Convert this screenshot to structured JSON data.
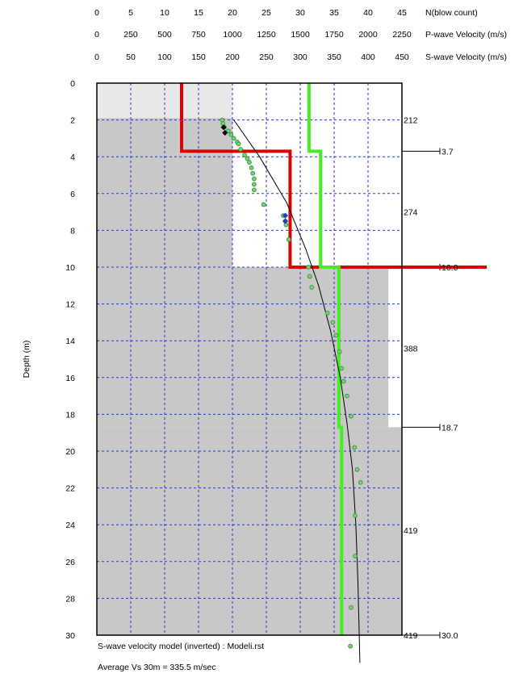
{
  "chart_data": {
    "type": "line",
    "ylabel": "Depth (m)",
    "ylim": [
      0,
      30
    ],
    "y_ticks": [
      0,
      2,
      4,
      6,
      8,
      10,
      12,
      14,
      16,
      18,
      20,
      22,
      24,
      26,
      28,
      30
    ],
    "axes_top": [
      {
        "label": "N(blow count)",
        "ticks": [
          0,
          5,
          10,
          15,
          20,
          25,
          30,
          35,
          40,
          45
        ],
        "range": [
          0,
          45
        ]
      },
      {
        "label": "P-wave Velocity (m/s)",
        "ticks": [
          0,
          250,
          500,
          750,
          1000,
          1250,
          1500,
          1750,
          2000,
          2250
        ],
        "range": [
          0,
          2250
        ]
      },
      {
        "label": "S-wave Velocity (m/s)",
        "ticks": [
          0,
          50,
          100,
          150,
          200,
          250,
          300,
          350,
          400,
          450
        ],
        "range": [
          0,
          450
        ]
      }
    ],
    "grid": true,
    "layers": [
      {
        "top": 0,
        "bottom": 3.7,
        "vs": 212
      },
      {
        "top": 3.7,
        "bottom": 10.0,
        "vs": 274
      },
      {
        "top": 10.0,
        "bottom": 18.7,
        "vs": 388
      },
      {
        "top": 18.7,
        "bottom": 30.0,
        "vs": 419
      }
    ],
    "layer_vs_labels": [
      {
        "depth": 2,
        "text": "212"
      },
      {
        "depth": 7,
        "text": "274"
      },
      {
        "depth": 14.4,
        "text": "388"
      },
      {
        "depth": 24.3,
        "text": "419"
      },
      {
        "depth": 30,
        "text": "419"
      }
    ],
    "boundary_labels": [
      {
        "depth": 3.7,
        "text": "3.7"
      },
      {
        "depth": 10.0,
        "text": "10.0"
      },
      {
        "depth": 18.7,
        "text": "18.7"
      },
      {
        "depth": 30.0,
        "text": "30.0"
      }
    ],
    "shaded_profile_vs": [
      {
        "top": 0,
        "bottom": 1.9,
        "vs": 200,
        "color": "#e8e8e8"
      },
      {
        "top": 1.9,
        "bottom": 10,
        "vs": 200,
        "color": "#c8c8c8"
      },
      {
        "top": 10,
        "bottom": 18.7,
        "vs": 430,
        "color": "#c8c8c8"
      },
      {
        "top": 18.7,
        "bottom": 30,
        "vs": 450,
        "color": "#c8c8c8"
      }
    ],
    "series": [
      {
        "type": "step",
        "color": "#e00000",
        "axis": "S-wave Velocity (m/s)",
        "points": [
          [
            125,
            0
          ],
          [
            125,
            3.7
          ],
          [
            285,
            3.7
          ],
          [
            285,
            10
          ],
          [
            575,
            10
          ]
        ]
      },
      {
        "type": "step",
        "color": "#44ee22",
        "axis": "S-wave Velocity (m/s)",
        "points": [
          [
            313,
            0
          ],
          [
            313,
            3.7
          ],
          [
            330,
            3.7
          ],
          [
            330,
            10
          ],
          [
            357,
            10
          ],
          [
            357,
            18.7
          ],
          [
            361,
            18.7
          ],
          [
            361,
            30
          ]
        ]
      },
      {
        "type": "line",
        "color": "#000000",
        "axis": "S-wave Velocity (m/s)",
        "points": [
          [
            202,
            2
          ],
          [
            240,
            4
          ],
          [
            280,
            6.5
          ],
          [
            308,
            9
          ],
          [
            327,
            11
          ],
          [
            345,
            13.5
          ],
          [
            359,
            16
          ],
          [
            369,
            18.5
          ],
          [
            377,
            21
          ],
          [
            382,
            24
          ],
          [
            385,
            27
          ],
          [
            387,
            30
          ],
          [
            388,
            31.5
          ]
        ]
      },
      {
        "type": "scatter",
        "marker": "circle",
        "color": "#3a9a3a",
        "axis": "S-wave Velocity (m/s)",
        "points": [
          [
            185,
            2.0
          ],
          [
            186,
            2.2
          ],
          [
            188,
            2.4
          ],
          [
            194,
            2.6
          ],
          [
            198,
            2.8
          ],
          [
            202,
            3.0
          ],
          [
            207,
            3.2
          ],
          [
            209,
            3.3
          ],
          [
            212,
            3.6
          ],
          [
            218,
            3.9
          ],
          [
            222,
            4.1
          ],
          [
            225,
            4.3
          ],
          [
            228,
            4.6
          ],
          [
            230,
            4.9
          ],
          [
            232,
            5.2
          ],
          [
            232,
            5.5
          ],
          [
            232,
            5.8
          ],
          [
            246,
            6.6
          ],
          [
            275,
            7.2
          ],
          [
            278,
            7.5
          ],
          [
            279,
            7.7
          ],
          [
            283,
            8.5
          ],
          [
            312,
            10.0
          ],
          [
            314,
            10.5
          ],
          [
            317,
            11.1
          ],
          [
            340,
            12.5
          ],
          [
            348,
            13.0
          ],
          [
            353,
            13.7
          ],
          [
            358,
            14.6
          ],
          [
            361,
            15.5
          ],
          [
            364,
            16.2
          ],
          [
            369,
            17.0
          ],
          [
            375,
            18.1
          ],
          [
            380,
            19.8
          ],
          [
            384,
            21.0
          ],
          [
            389,
            21.7
          ],
          [
            381,
            23.5
          ],
          [
            381,
            25.7
          ],
          [
            375,
            28.5
          ],
          [
            374,
            30.6
          ]
        ]
      },
      {
        "type": "scatter",
        "marker": "diamond",
        "color": "#000000",
        "axis": "S-wave Velocity (m/s)",
        "points": [
          [
            187,
            2.4
          ],
          [
            189,
            2.7
          ]
        ]
      },
      {
        "type": "scatter",
        "marker": "diamond",
        "color": "#2040c0",
        "axis": "S-wave Velocity (m/s)",
        "points": [
          [
            278,
            7.2
          ],
          [
            278,
            7.5
          ]
        ]
      }
    ],
    "annotations": [
      "S-wave velocity model (inverted) : Modeli.rst",
      "Average Vs 30m = 335.5 m/sec"
    ]
  }
}
